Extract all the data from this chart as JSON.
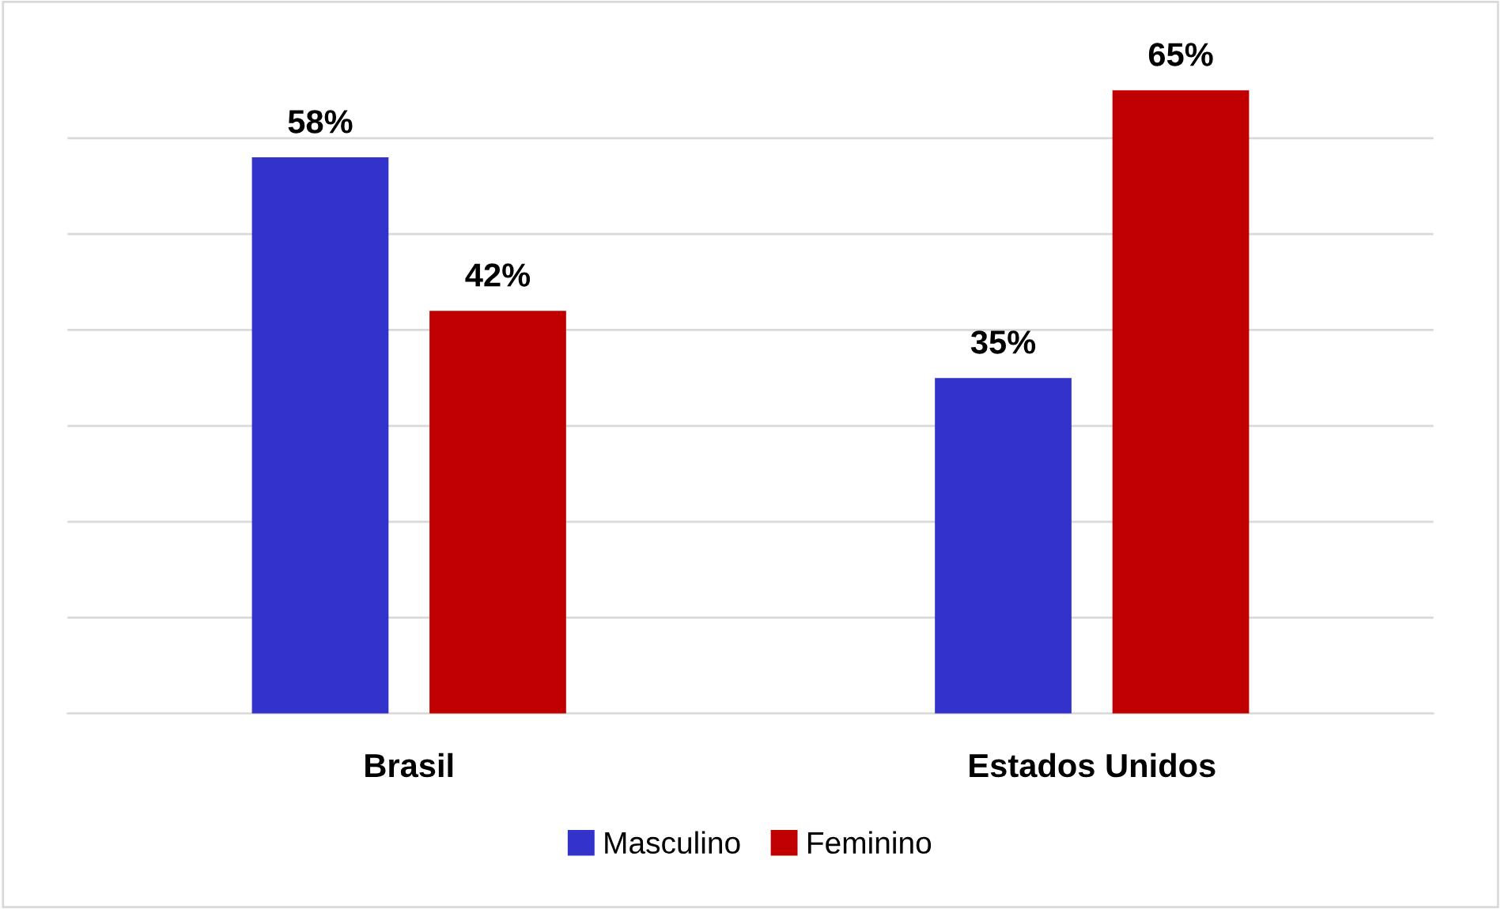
{
  "chart_data": {
    "type": "bar",
    "categories": [
      "Brasil",
      "Estados Unidos"
    ],
    "series": [
      {
        "name": "Masculino",
        "color": "#3333cc",
        "values": [
          58,
          35
        ],
        "value_labels": [
          "58%",
          "35%"
        ]
      },
      {
        "name": "Feminino",
        "color": "#c00000",
        "values": [
          42,
          65
        ],
        "value_labels": [
          "42%",
          "65%"
        ]
      }
    ],
    "grid": "y",
    "legend": "bottom",
    "tick_labels": "x"
  }
}
